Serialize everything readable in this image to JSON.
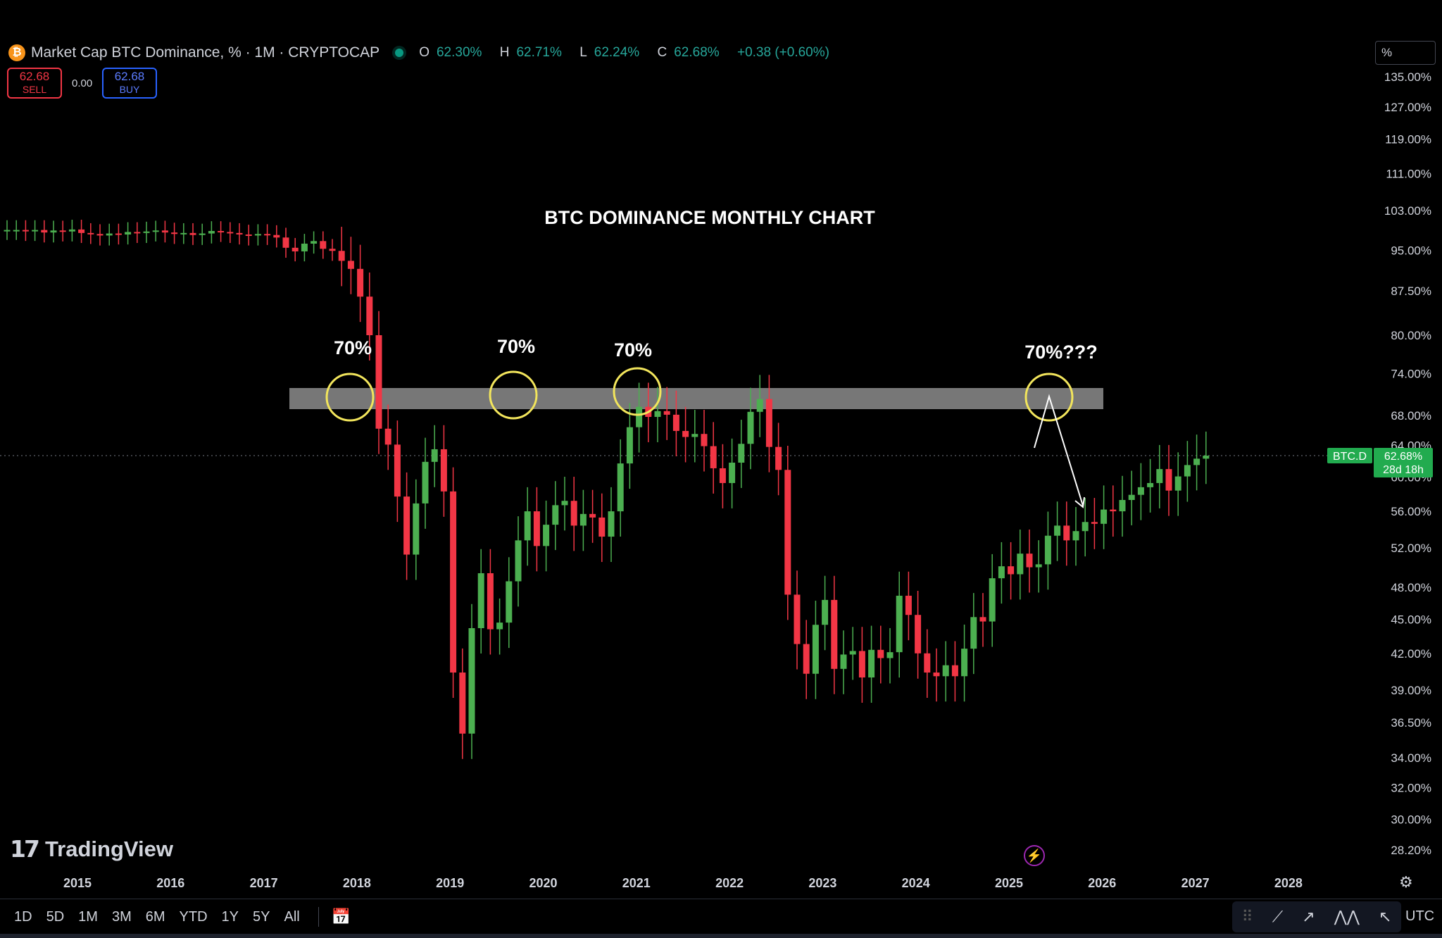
{
  "header": {
    "symbol_badge": "₿",
    "title": "Market Cap BTC Dominance, % · 1M · CRYPTOCAP",
    "ohlc": {
      "o": "62.30%",
      "h": "62.71%",
      "l": "62.24%",
      "c": "62.68%",
      "change": "+0.38 (+0.60%)"
    }
  },
  "trade": {
    "sell_price": "62.68",
    "sell_label": "SELL",
    "spread": "0.00",
    "buy_price": "62.68",
    "buy_label": "BUY"
  },
  "unit_selector": "%",
  "brand": "TradingView",
  "timeframes": [
    "1D",
    "5D",
    "1M",
    "3M",
    "6M",
    "YTD",
    "1Y",
    "5Y",
    "All"
  ],
  "timezone": "UTC",
  "colors": {
    "up": "#4caf50",
    "down": "#f23645",
    "zone": "#8c8c8c",
    "circle": "#f2e55c",
    "price_label": "#22ab4f"
  },
  "chart_data": {
    "type": "candlestick",
    "title": "BTC DOMINANCE MONTHLY CHART",
    "y_scale": "log",
    "y_ticks": [
      "135.00%",
      "127.00%",
      "119.00%",
      "111.00%",
      "103.00%",
      "95.00%",
      "87.50%",
      "80.00%",
      "74.00%",
      "68.00%",
      "64.00%",
      "60.00%",
      "56.00%",
      "52.00%",
      "48.00%",
      "45.00%",
      "42.00%",
      "39.00%",
      "36.50%",
      "34.00%",
      "32.00%",
      "30.00%",
      "28.20%"
    ],
    "x_ticks": [
      "2015",
      "2016",
      "2017",
      "2018",
      "2019",
      "2020",
      "2021",
      "2022",
      "2023",
      "2024",
      "2025",
      "2026",
      "2027",
      "2028"
    ],
    "resistance_zone": [
      69,
      73
    ],
    "annotations": [
      "70%",
      "70%",
      "70%",
      "70%???"
    ],
    "last_price": {
      "symbol": "BTC.D",
      "value": "62.68%",
      "countdown": "28d 18h"
    },
    "candles_close": [
      99,
      99,
      98.8,
      99,
      98.5,
      98.9,
      98.7,
      99.1,
      98.4,
      98.2,
      97.9,
      98.3,
      98.1,
      98.6,
      98.4,
      98.7,
      98.9,
      98.5,
      98.2,
      98.4,
      98,
      98.3,
      98.8,
      98.6,
      98.4,
      98.1,
      97.9,
      98.2,
      98,
      97.5,
      95.5,
      94.8,
      96.3,
      96.8,
      95.3,
      94.9,
      93,
      91.5,
      86.5,
      80,
      66.2,
      64.1,
      57.7,
      51.3,
      56.9,
      61.9,
      63.5,
      58.3,
      40.4,
      35.7,
      44.2,
      49.4,
      44.1,
      44.7,
      48.6,
      52.8,
      56,
      52.2,
      54.5,
      56.7,
      57.2,
      54.4,
      55.7,
      55.3,
      53.2,
      56,
      61.7,
      66.4,
      69.2,
      67.8,
      68.6,
      68.1,
      65.9,
      65.1,
      65.5,
      63.9,
      61.1,
      59.3,
      61.8,
      64.2,
      68.5,
      70.3,
      63.8,
      60.9,
      47.3,
      42.8,
      40.3,
      44.5,
      46.8,
      40.7,
      41.9,
      42.2,
      40,
      42.3,
      41.6,
      42.1,
      47.2,
      45.4,
      42,
      40.4,
      40.1,
      41,
      40.1,
      42.4,
      45.2,
      44.8,
      48.9,
      50.1,
      49.3,
      51.4,
      50,
      50.3,
      53.3,
      54.4,
      52.8,
      53.8,
      54.8,
      54.6,
      56.2,
      56,
      57.3,
      57.9,
      58.8,
      59.3,
      61,
      58.4,
      60.1,
      61.5,
      62.3,
      62.68
    ]
  }
}
